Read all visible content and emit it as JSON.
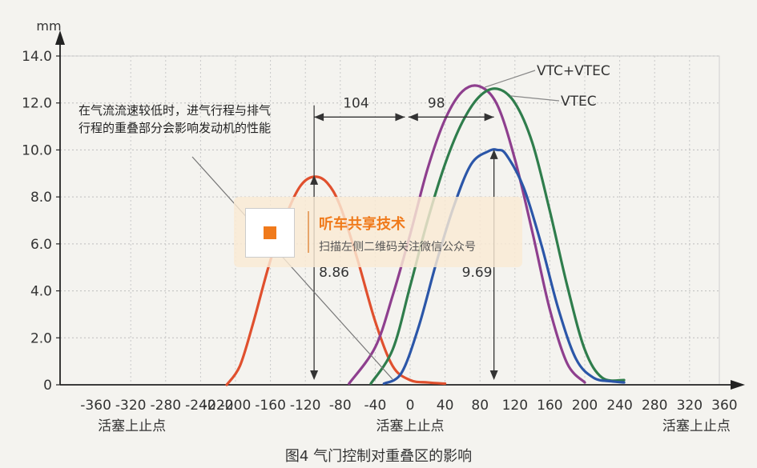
{
  "chart_data": {
    "type": "line",
    "ylabel": "mm",
    "xlim": [
      -360,
      360
    ],
    "ylim": [
      0,
      14
    ],
    "x_ticks": [
      -360,
      -320,
      -280,
      -240,
      -220,
      -200,
      -160,
      -120,
      -80,
      -40,
      0,
      40,
      80,
      120,
      160,
      200,
      240,
      280,
      320,
      360
    ],
    "y_ticks": [
      {
        "v": 0,
        "label": "0"
      },
      {
        "v": 2,
        "label": "2.0"
      },
      {
        "v": 4,
        "label": "4.0"
      },
      {
        "v": 6,
        "label": "6.0"
      },
      {
        "v": 8,
        "label": "8.0"
      },
      {
        "v": 10,
        "label": "10.0"
      },
      {
        "v": 12,
        "label": "12.0"
      },
      {
        "v": 14,
        "label": "14.0"
      }
    ],
    "grid": true,
    "x_labels": [
      {
        "x": -360,
        "text": "活塞上止点"
      },
      {
        "x": 0,
        "text": "活塞上止点"
      },
      {
        "x": 360,
        "text": "活塞上止点"
      }
    ],
    "series": [
      {
        "name": "",
        "color": "#e0502e",
        "x": [
          -210,
          -195,
          -180,
          -160,
          -140,
          -125,
          -110,
          -95,
          -80,
          -60,
          -40,
          -20,
          0,
          20,
          40
        ],
        "y": [
          0,
          0.8,
          2.6,
          5.3,
          7.4,
          8.5,
          8.86,
          8.6,
          7.6,
          5.3,
          2.7,
          0.8,
          0.2,
          0.1,
          0.05
        ]
      },
      {
        "name": "VTC+VTEC",
        "color": "#8e3f8e",
        "x": [
          -70,
          -40,
          -20,
          0,
          20,
          40,
          60,
          80,
          100,
          120,
          140,
          160,
          180,
          200
        ],
        "y": [
          0.05,
          1.6,
          3.8,
          6.4,
          9.2,
          11.3,
          12.5,
          12.7,
          11.9,
          9.6,
          6.5,
          3.2,
          0.9,
          0.1
        ]
      },
      {
        "name": "VTEC",
        "color": "#2f7d4c",
        "x": [
          -45,
          -20,
          0,
          20,
          40,
          60,
          80,
          100,
          120,
          140,
          160,
          180,
          200,
          220,
          245
        ],
        "y": [
          0.05,
          1.5,
          4.2,
          7.0,
          9.4,
          11.2,
          12.3,
          12.6,
          12.0,
          10.3,
          7.4,
          4.2,
          1.5,
          0.3,
          0.2
        ]
      },
      {
        "name": "",
        "color": "#2b56a8",
        "x": [
          -30,
          -10,
          10,
          30,
          50,
          70,
          90,
          100,
          110,
          130,
          150,
          170,
          190,
          210,
          230,
          245
        ],
        "y": [
          0.05,
          0.5,
          2.5,
          5.2,
          7.6,
          9.4,
          9.95,
          10.0,
          9.8,
          8.4,
          6.0,
          3.2,
          1.1,
          0.3,
          0.15,
          0.1
        ]
      }
    ],
    "annotations": {
      "lift_a": "8.86",
      "lift_b": "9.69",
      "span_a": "104",
      "span_b": "98",
      "note": "在气流流速较低时，进气行程与排气行程的重叠部分会影响发动机的性能"
    }
  },
  "caption": "图4  气门控制对重叠区的影响",
  "watermark": {
    "title": "听车共享技术",
    "subtitle": "扫描左侧二维码关注微信公众号"
  },
  "icons": {
    "qr": "qr-code-icon"
  }
}
